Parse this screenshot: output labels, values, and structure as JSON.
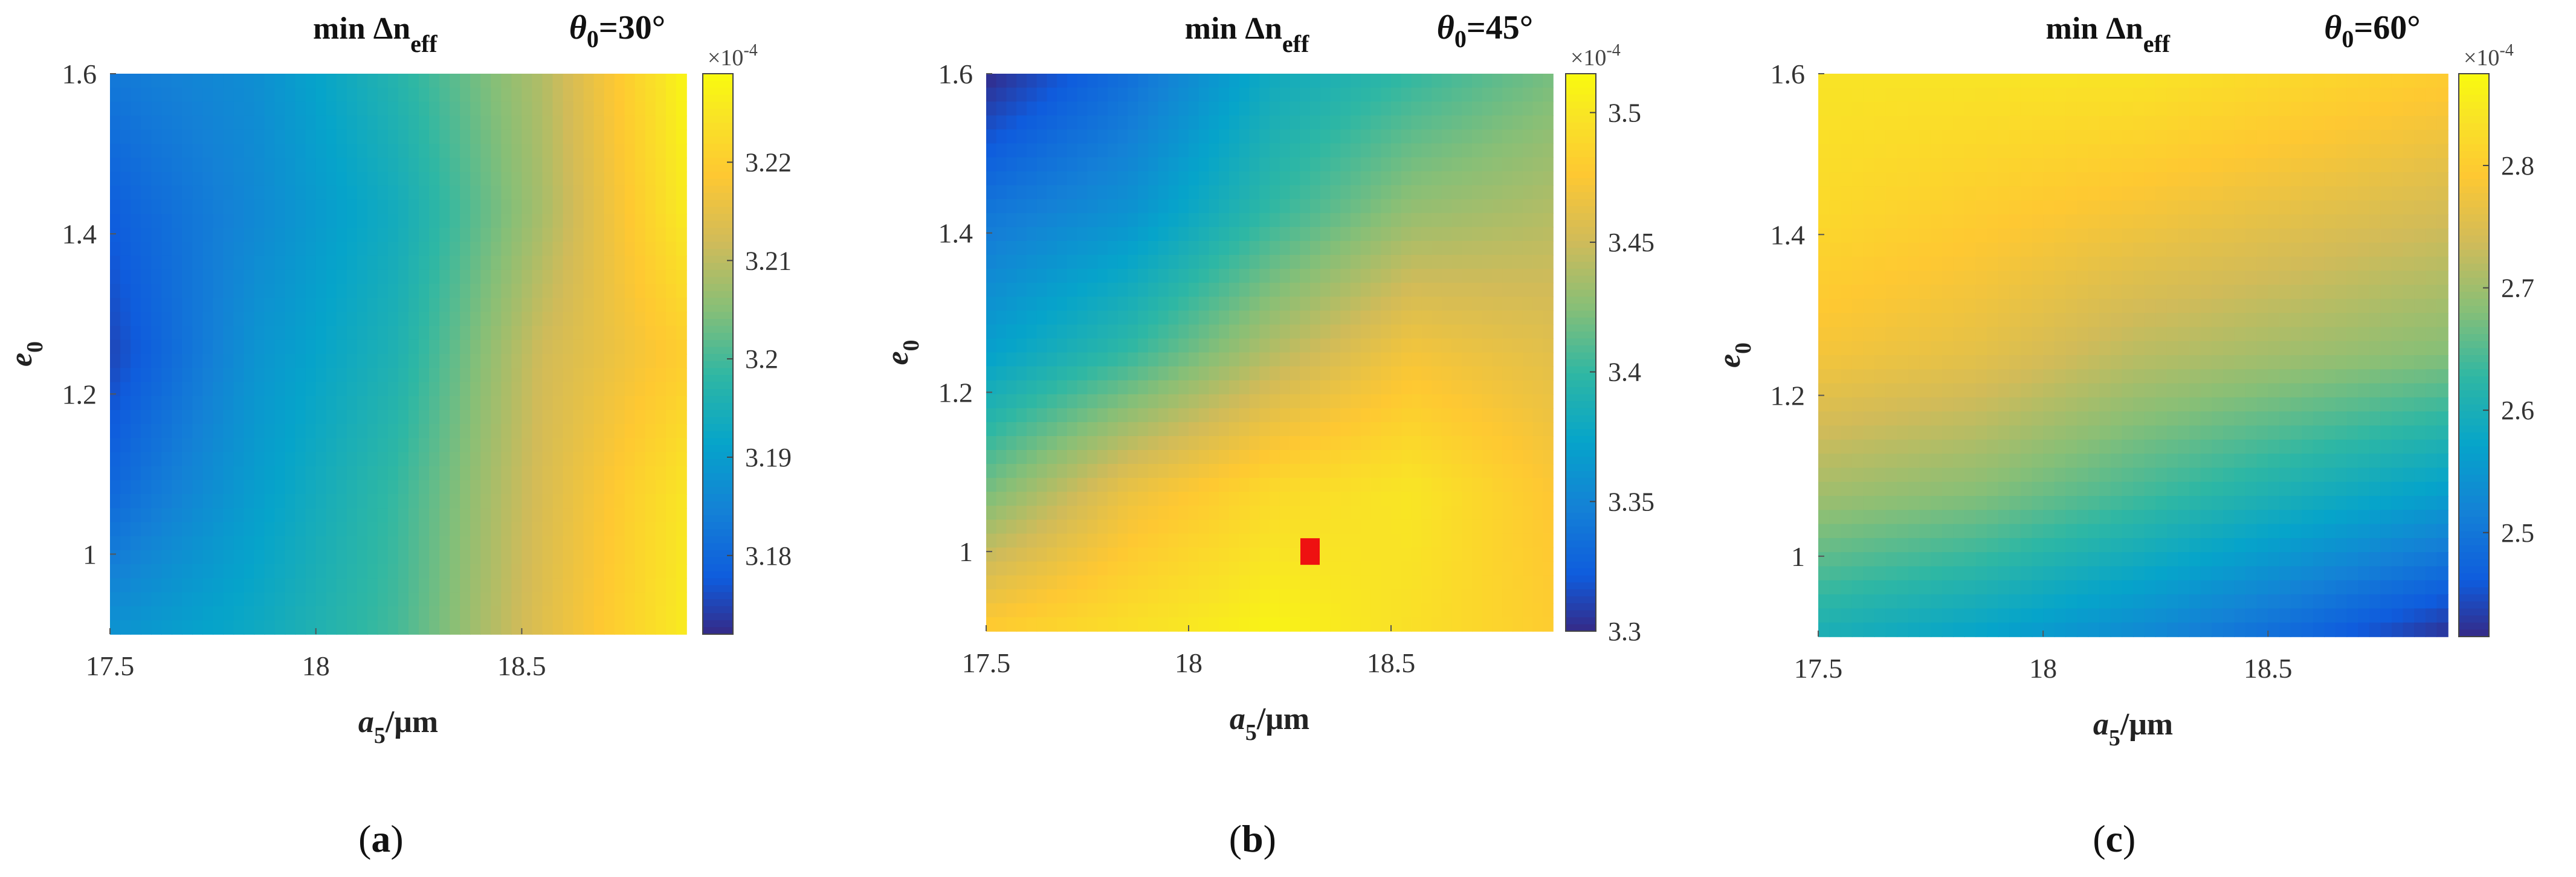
{
  "chart_data": [
    {
      "type": "heatmap",
      "panel_label": "a",
      "title": "min Δn",
      "title_sub": "eff",
      "theta_label": "θ",
      "theta_sub": "0",
      "theta_value": "=30°",
      "xlabel": "a",
      "xlabel_sub": "5",
      "xlabel_unit": "/μm",
      "ylabel": "e",
      "ylabel_sub": "0",
      "xlim": [
        17.5,
        18.9
      ],
      "ylim": [
        0.9,
        1.6
      ],
      "x_ticks": [
        17.5,
        18,
        18.5
      ],
      "x_tick_labels": [
        "17.5",
        "18",
        "18.5"
      ],
      "y_ticks": [
        1.0,
        1.2,
        1.4,
        1.6
      ],
      "y_tick_labels": [
        "1",
        "1.2",
        "1.4",
        "1.6"
      ],
      "x": [
        17.5,
        17.85,
        18.2,
        18.55,
        18.9
      ],
      "y": [
        0.9,
        1.075,
        1.25,
        1.425,
        1.6
      ],
      "z_scale": "1e-4",
      "z": [
        [
          3.188,
          3.193,
          3.2,
          3.214,
          3.226
        ],
        [
          3.18,
          3.19,
          3.199,
          3.213,
          3.225
        ],
        [
          3.175,
          3.188,
          3.196,
          3.212,
          3.22
        ],
        [
          3.178,
          3.186,
          3.194,
          3.208,
          3.226
        ],
        [
          3.183,
          3.187,
          3.197,
          3.209,
          3.228
        ]
      ],
      "clim": [
        3.172,
        3.229
      ],
      "colorbar_exponent_base": "×10",
      "colorbar_exponent_power": "-4",
      "colorbar_ticks": [
        3.18,
        3.19,
        3.2,
        3.21,
        3.22
      ],
      "colorbar_tick_labels": [
        "3.18",
        "3.19",
        "3.2",
        "3.21",
        "3.22"
      ],
      "colormap": "parula"
    },
    {
      "type": "heatmap",
      "panel_label": "b",
      "title": "min Δn",
      "title_sub": "eff",
      "theta_label": "θ",
      "theta_sub": "0",
      "theta_value": "=45°",
      "xlabel": "a",
      "xlabel_sub": "5",
      "xlabel_unit": "/μm",
      "ylabel": "e",
      "ylabel_sub": "0",
      "xlim": [
        17.5,
        18.9
      ],
      "ylim": [
        0.9,
        1.6
      ],
      "x_ticks": [
        17.5,
        18,
        18.5
      ],
      "x_tick_labels": [
        "17.5",
        "18",
        "18.5"
      ],
      "y_ticks": [
        1.0,
        1.2,
        1.4,
        1.6
      ],
      "y_tick_labels": [
        "1",
        "1.2",
        "1.4",
        "1.6"
      ],
      "x": [
        17.5,
        17.85,
        18.2,
        18.55,
        18.9
      ],
      "y": [
        0.9,
        1.075,
        1.25,
        1.425,
        1.6
      ],
      "z_scale": "1e-4",
      "z": [
        [
          3.48,
          3.495,
          3.51,
          3.495,
          3.48
        ],
        [
          3.42,
          3.465,
          3.49,
          3.5,
          3.475
        ],
        [
          3.37,
          3.4,
          3.44,
          3.47,
          3.46
        ],
        [
          3.34,
          3.36,
          3.4,
          3.43,
          3.44
        ],
        [
          3.3,
          3.335,
          3.38,
          3.4,
          3.42
        ]
      ],
      "clim": [
        3.3,
        3.515
      ],
      "colorbar_exponent_base": "×10",
      "colorbar_exponent_power": "-4",
      "colorbar_ticks": [
        3.3,
        3.35,
        3.4,
        3.45,
        3.5
      ],
      "colorbar_tick_labels": [
        "3.3",
        "3.35",
        "3.4",
        "3.45",
        "3.5"
      ],
      "marker": {
        "x": 18.3,
        "y": 1.0,
        "color": "#ee1111"
      },
      "colormap": "parula"
    },
    {
      "type": "heatmap",
      "panel_label": "c",
      "title": "min Δn",
      "title_sub": "eff",
      "theta_label": "θ",
      "theta_sub": "0",
      "theta_value": "=60°",
      "xlabel": "a",
      "xlabel_sub": "5",
      "xlabel_unit": "/μm",
      "ylabel": "e",
      "ylabel_sub": "0",
      "xlim": [
        17.5,
        18.9
      ],
      "ylim": [
        0.9,
        1.6
      ],
      "x_ticks": [
        17.5,
        18,
        18.5
      ],
      "x_tick_labels": [
        "17.5",
        "18",
        "18.5"
      ],
      "y_ticks": [
        1.0,
        1.2,
        1.4,
        1.6
      ],
      "y_tick_labels": [
        "1",
        "1.2",
        "1.4",
        "1.6"
      ],
      "x": [
        17.5,
        17.85,
        18.2,
        18.55,
        18.9
      ],
      "y": [
        0.9,
        1.075,
        1.25,
        1.425,
        1.6
      ],
      "z_scale": "1e-4",
      "z": [
        [
          2.6,
          2.57,
          2.53,
          2.48,
          2.42
        ],
        [
          2.7,
          2.68,
          2.64,
          2.6,
          2.56
        ],
        [
          2.78,
          2.76,
          2.72,
          2.7,
          2.68
        ],
        [
          2.82,
          2.8,
          2.78,
          2.76,
          2.74
        ],
        [
          2.84,
          2.84,
          2.84,
          2.82,
          2.8
        ]
      ],
      "clim": [
        2.415,
        2.875
      ],
      "colorbar_exponent_base": "×10",
      "colorbar_exponent_power": "-4",
      "colorbar_ticks": [
        2.5,
        2.6,
        2.7,
        2.8
      ],
      "colorbar_tick_labels": [
        "2.5",
        "2.6",
        "2.7",
        "2.8"
      ],
      "colormap": "parula"
    }
  ]
}
